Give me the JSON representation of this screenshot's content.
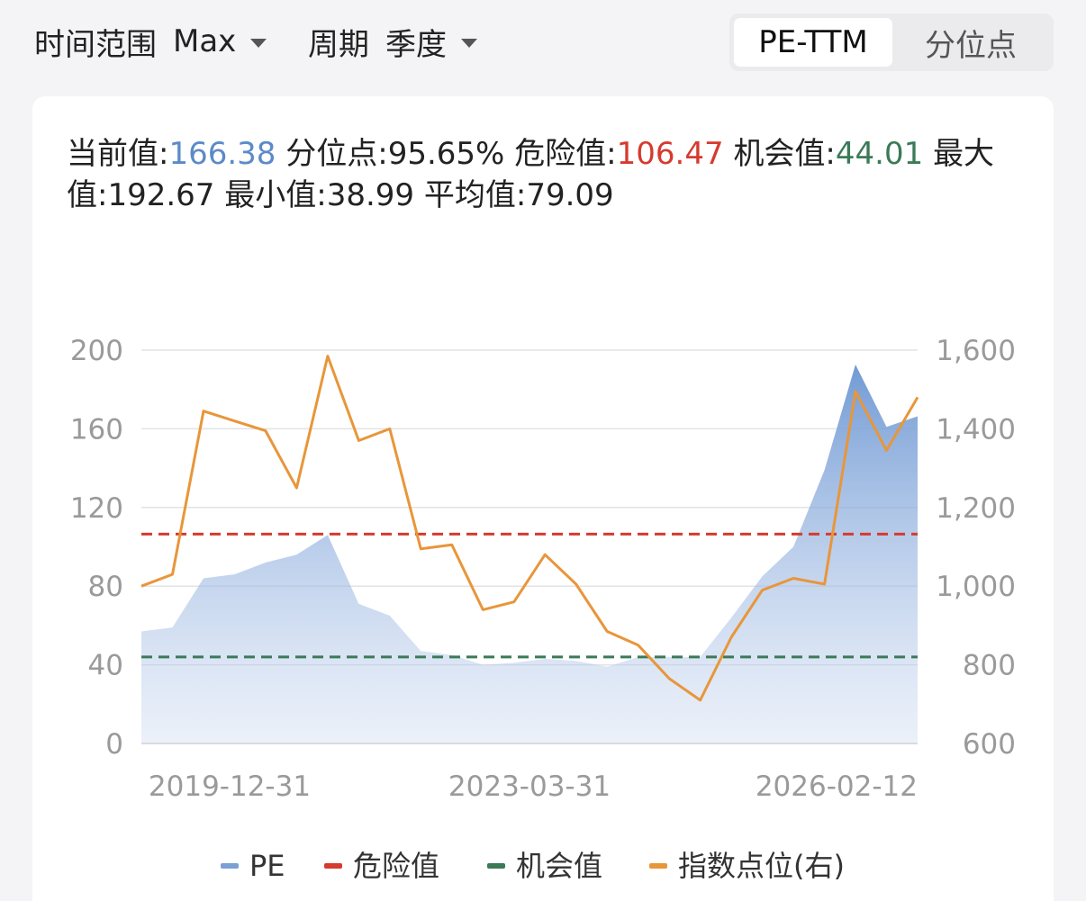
{
  "filters": {
    "range_label": "时间范围",
    "range_value": "Max",
    "period_label": "周期",
    "period_value": "季度"
  },
  "tabs": [
    {
      "label": "PE-TTM",
      "active": true
    },
    {
      "label": "分位点",
      "active": false
    }
  ],
  "stats": {
    "current_label": "当前值:",
    "current_value": "166.38",
    "percentile_label": "分位点:",
    "percentile_value": "95.65%",
    "danger_label": "危险值:",
    "danger_value": "106.47",
    "opportunity_label": "机会值:",
    "opportunity_value": "44.01",
    "max_label": "最大值:",
    "max_value": "192.67",
    "min_label": "最小值:",
    "min_value": "38.99",
    "avg_label": "平均值:",
    "avg_value": "79.09"
  },
  "colors": {
    "pe": "#7aa0d6",
    "danger": "#d63a2f",
    "opportunity": "#3b7a57",
    "index": "#e8963a",
    "blue_text": "#5b8bc6"
  },
  "chart_data": {
    "type": "line",
    "x_ticks": [
      "2019-12-31",
      "2023-03-31",
      "2026-02-12"
    ],
    "y_left": {
      "min": 0,
      "max": 200,
      "ticks": [
        "0",
        "40",
        "80",
        "120",
        "160",
        "200"
      ]
    },
    "y_right": {
      "min": 600,
      "max": 1600,
      "ticks": [
        "600",
        "800",
        "1,000",
        "1,200",
        "1,400",
        "1,600"
      ]
    },
    "grid": true,
    "legend_position": "bottom",
    "series": [
      {
        "name": "PE",
        "type": "area",
        "axis": "left",
        "values": [
          57,
          59,
          84,
          86,
          92,
          96,
          106,
          71,
          65,
          47,
          45,
          40,
          41,
          43,
          42,
          39,
          44,
          44,
          44,
          64,
          85,
          100,
          139,
          192.67,
          161,
          166.38
        ]
      },
      {
        "name": "危险值",
        "type": "dashed",
        "axis": "left",
        "value": 106.47
      },
      {
        "name": "机会值",
        "type": "dashed",
        "axis": "left",
        "value": 44.01
      },
      {
        "name": "指数点位(右)",
        "type": "line",
        "axis": "right",
        "values": [
          1000,
          1030,
          1445,
          1420,
          1395,
          1250,
          1585,
          1370,
          1400,
          1095,
          1105,
          940,
          960,
          1080,
          1005,
          885,
          850,
          765,
          710,
          870,
          990,
          1020,
          1005,
          1495,
          1345,
          1480
        ]
      }
    ]
  }
}
